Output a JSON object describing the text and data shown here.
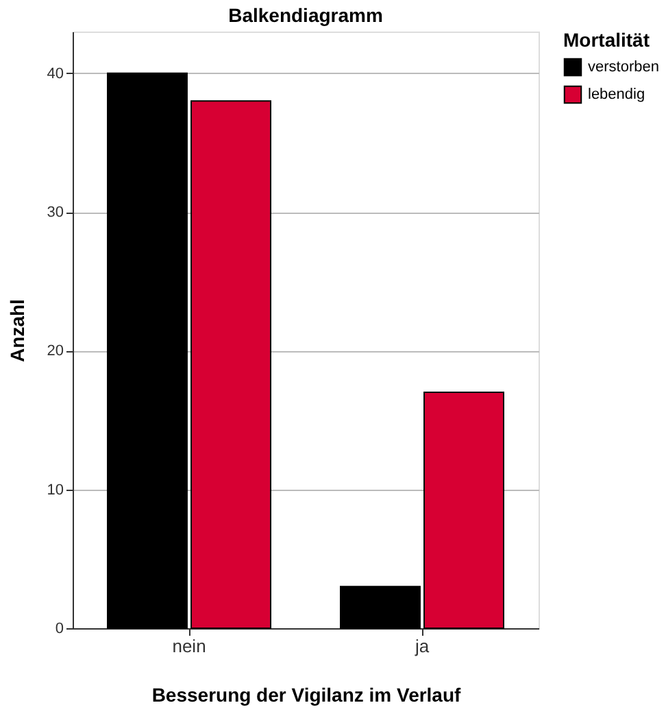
{
  "chart_data": {
    "type": "bar",
    "title": "Balkendiagramm",
    "xlabel": "Besserung der Vigilanz im Verlauf",
    "ylabel": "Anzahl",
    "legend_title": "Mortalität",
    "categories": [
      "nein",
      "ja"
    ],
    "series": [
      {
        "name": "verstorben",
        "color": "#000000",
        "values": [
          40,
          3
        ]
      },
      {
        "name": "lebendig",
        "color": "#d70033",
        "values": [
          38,
          17
        ]
      }
    ],
    "ylim": [
      0,
      43
    ],
    "yticks": [
      0,
      10,
      20,
      30,
      40
    ],
    "grid": "y",
    "legend": "top right"
  }
}
